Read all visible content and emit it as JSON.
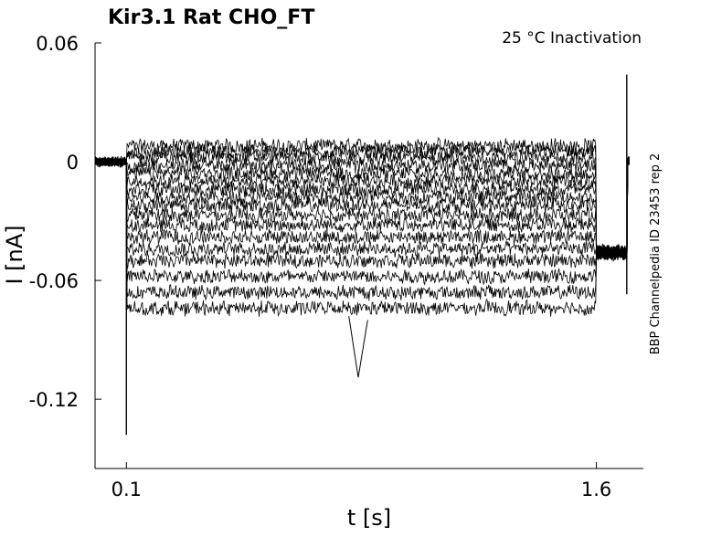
{
  "chart_data": {
    "type": "line",
    "title": "Kir3.1  Rat  CHO_FT",
    "condition": "25 °C  Inactivation",
    "side_label": "BBP Channelpedia ID 23453 rep 2",
    "xlabel": "t [s]",
    "ylabel": "I [nA]",
    "xlim": [
      0.0,
      1.75
    ],
    "ylim": [
      -0.155,
      0.06
    ],
    "x_ticks": [
      0.1,
      1.6
    ],
    "x_tick_labels": [
      "0.1",
      "1.6"
    ],
    "y_ticks": [
      0.06,
      0.0,
      -0.06,
      -0.12
    ],
    "y_tick_labels": [
      "0.06",
      "0",
      "-0.06",
      "-0.12"
    ],
    "grid": false,
    "legend": "none",
    "trace_color": "#000000",
    "protocol": {
      "baseline_level": 0.0,
      "step_start_s": 0.1,
      "step_end_s": 1.6,
      "post_step_level": -0.046,
      "post_step_end_s": 1.7,
      "return_level": 0.0
    },
    "sweep_levels": [
      0.008,
      0.005,
      0.002,
      -0.002,
      -0.006,
      -0.01,
      -0.014,
      -0.018,
      -0.022,
      -0.027,
      -0.032,
      -0.038,
      -0.044,
      -0.05,
      -0.058,
      -0.066,
      -0.074
    ],
    "noise_amplitude": 0.004,
    "extremes": {
      "onset_transient_min": -0.138,
      "global_min_near": {
        "x": 0.84,
        "y": -0.109
      },
      "offset_spike_max": 0.044,
      "offset_spike_min": -0.067
    }
  }
}
